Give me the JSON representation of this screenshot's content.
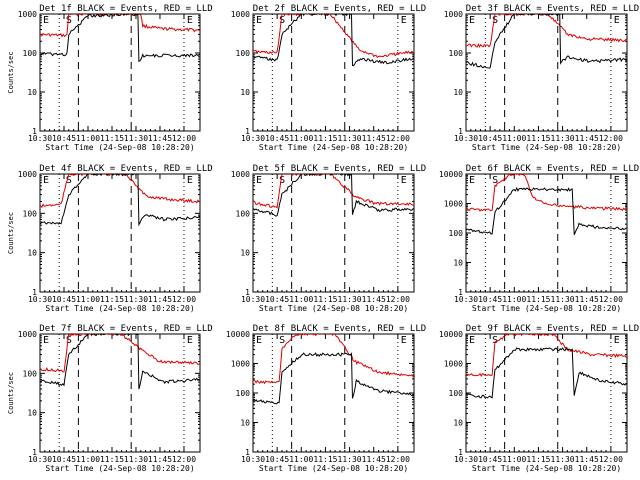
{
  "chart_data": [
    {
      "type": "line",
      "title": "Det 1f BLACK = Events, RED = LLD",
      "xlabel": "Start Time (24-Sep-08 10:28:20)",
      "ylabel": "Counts/sec",
      "ymax_decade": 1000,
      "xticks": [
        "10:30",
        "10:45",
        "11:00",
        "11:15",
        "11:30",
        "11:45",
        "12:00"
      ],
      "yticks": [
        "1",
        "10",
        "100",
        "1000"
      ],
      "markers": [
        "S",
        "E",
        "E"
      ],
      "series": [
        {
          "color": "#e00000",
          "values": [
            [
              10.47,
              300
            ],
            [
              10.78,
              280
            ],
            [
              10.8,
              1000
            ],
            [
              11.55,
              1000
            ],
            [
              11.57,
              500
            ],
            [
              11.75,
              420
            ],
            [
              12.17,
              380
            ]
          ]
        },
        {
          "color": "#000000",
          "values": [
            [
              10.47,
              95
            ],
            [
              10.78,
              92
            ],
            [
              10.8,
              300
            ],
            [
              11.0,
              900
            ],
            [
              11.52,
              1000
            ],
            [
              11.53,
              60
            ],
            [
              11.57,
              85
            ],
            [
              12.17,
              88
            ]
          ]
        }
      ]
    },
    {
      "type": "line",
      "title": "Det 2f BLACK = Events, RED = LLD",
      "xlabel": "Start Time (24-Sep-08 10:28:20)",
      "ylabel": "",
      "ymax_decade": 1000,
      "xticks": [
        "10:30",
        "10:45",
        "11:00",
        "11:15",
        "11:30",
        "11:45",
        "12:00"
      ],
      "yticks": [
        "1",
        "10",
        "100",
        "1000"
      ],
      "markers": [
        "S",
        "E",
        "E"
      ],
      "series": [
        {
          "color": "#e00000",
          "values": [
            [
              10.47,
              110
            ],
            [
              10.75,
              100
            ],
            [
              10.8,
              1000
            ],
            [
              11.3,
              1000
            ],
            [
              11.6,
              120
            ],
            [
              11.8,
              80
            ],
            [
              12.17,
              110
            ]
          ]
        },
        {
          "color": "#000000",
          "values": [
            [
              10.47,
              85
            ],
            [
              10.75,
              65
            ],
            [
              10.8,
              300
            ],
            [
              11.0,
              1000
            ],
            [
              11.52,
              1000
            ],
            [
              11.53,
              45
            ],
            [
              11.6,
              70
            ],
            [
              11.9,
              55
            ],
            [
              12.17,
              75
            ]
          ]
        }
      ]
    },
    {
      "type": "line",
      "title": "Det 3f BLACK = Events, RED = LLD",
      "xlabel": "Start Time (24-Sep-08 10:28:20)",
      "ylabel": "",
      "ymax_decade": 1000,
      "xticks": [
        "10:30",
        "10:45",
        "11:00",
        "11:15",
        "11:30",
        "11:45",
        "12:00"
      ],
      "yticks": [
        "1",
        "10",
        "100",
        "1000"
      ],
      "markers": [
        "S",
        "E",
        "E"
      ],
      "series": [
        {
          "color": "#e00000",
          "values": [
            [
              10.47,
              160
            ],
            [
              10.75,
              150
            ],
            [
              10.8,
              1000
            ],
            [
              11.35,
              1000
            ],
            [
              11.55,
              300
            ],
            [
              11.75,
              230
            ],
            [
              12.17,
              210
            ]
          ]
        },
        {
          "color": "#000000",
          "values": [
            [
              10.47,
              60
            ],
            [
              10.75,
              40
            ],
            [
              10.8,
              200
            ],
            [
              11.0,
              1000
            ],
            [
              11.47,
              1000
            ],
            [
              11.48,
              55
            ],
            [
              11.55,
              80
            ],
            [
              11.8,
              60
            ],
            [
              12.17,
              70
            ]
          ]
        }
      ]
    },
    {
      "type": "line",
      "title": "Det 4f BLACK = Events, RED = LLD",
      "xlabel": "Start Time (24-Sep-08 10:28:20)",
      "ylabel": "Counts/sec",
      "ymax_decade": 1000,
      "xticks": [
        "10:30",
        "10:45",
        "11:00",
        "11:15",
        "11:30",
        "11:45",
        "12:00"
      ],
      "yticks": [
        "1",
        "10",
        "100",
        "1000"
      ],
      "markers": [
        "S",
        "E",
        "E"
      ],
      "series": [
        {
          "color": "#e00000",
          "values": [
            [
              10.47,
              150
            ],
            [
              10.72,
              170
            ],
            [
              10.8,
              1000
            ],
            [
              11.4,
              1000
            ],
            [
              11.5,
              500
            ],
            [
              11.6,
              280
            ],
            [
              11.8,
              230
            ],
            [
              12.17,
              200
            ]
          ]
        },
        {
          "color": "#000000",
          "values": [
            [
              10.47,
              60
            ],
            [
              10.72,
              55
            ],
            [
              10.8,
              300
            ],
            [
              11.0,
              1000
            ],
            [
              11.52,
              1000
            ],
            [
              11.53,
              55
            ],
            [
              11.6,
              90
            ],
            [
              11.8,
              70
            ],
            [
              12.17,
              80
            ]
          ]
        }
      ]
    },
    {
      "type": "line",
      "title": "Det 5f BLACK = Events, RED = LLD",
      "xlabel": "Start Time (24-Sep-08 10:28:20)",
      "ylabel": "",
      "ymax_decade": 1000,
      "xticks": [
        "10:30",
        "10:45",
        "11:00",
        "11:15",
        "11:30",
        "11:45",
        "12:00"
      ],
      "yticks": [
        "1",
        "10",
        "100",
        "1000"
      ],
      "markers": [
        "S",
        "E",
        "E"
      ],
      "series": [
        {
          "color": "#e00000",
          "values": [
            [
              10.47,
              200
            ],
            [
              10.75,
              140
            ],
            [
              10.8,
              1000
            ],
            [
              11.3,
              1000
            ],
            [
              11.55,
              280
            ],
            [
              11.75,
              180
            ],
            [
              12.17,
              170
            ]
          ]
        },
        {
          "color": "#000000",
          "values": [
            [
              10.47,
              140
            ],
            [
              10.75,
              90
            ],
            [
              10.8,
              300
            ],
            [
              11.0,
              1000
            ],
            [
              11.52,
              1000
            ],
            [
              11.53,
              90
            ],
            [
              11.57,
              200
            ],
            [
              11.8,
              120
            ],
            [
              12.17,
              130
            ]
          ]
        }
      ]
    },
    {
      "type": "line",
      "title": "Det 6f BLACK = Events, RED = LLD",
      "xlabel": "Start Time (24-Sep-08 10:28:20)",
      "ylabel": "",
      "ymax_decade": 10000,
      "xticks": [
        "10:30",
        "10:45",
        "11:00",
        "11:15",
        "11:30",
        "11:45",
        "12:00"
      ],
      "yticks": [
        "1",
        "10",
        "100",
        "1000",
        "10000"
      ],
      "markers": [
        "S",
        "E",
        "E"
      ],
      "series": [
        {
          "color": "#e00000",
          "values": [
            [
              10.47,
              650
            ],
            [
              10.77,
              600
            ],
            [
              10.8,
              4000
            ],
            [
              10.95,
              9000
            ],
            [
              11.1,
              10000
            ],
            [
              11.2,
              1500
            ],
            [
              11.35,
              900
            ],
            [
              11.8,
              700
            ],
            [
              12.17,
              650
            ]
          ]
        },
        {
          "color": "#000000",
          "values": [
            [
              10.47,
              130
            ],
            [
              10.77,
              100
            ],
            [
              10.8,
              500
            ],
            [
              11.0,
              3000
            ],
            [
              11.6,
              3000
            ],
            [
              11.62,
              90
            ],
            [
              11.67,
              200
            ],
            [
              11.9,
              150
            ],
            [
              12.17,
              140
            ]
          ]
        }
      ]
    },
    {
      "type": "line",
      "title": "Det 7f BLACK = Events, RED = LLD",
      "xlabel": "Start Time (24-Sep-08 10:28:20)",
      "ylabel": "Counts/sec",
      "ymax_decade": 1000,
      "xticks": [
        "10:30",
        "10:45",
        "11:00",
        "11:15",
        "11:30",
        "11:45",
        "12:00"
      ],
      "yticks": [
        "1",
        "10",
        "100",
        "1000"
      ],
      "markers": [
        "S",
        "E",
        "E"
      ],
      "series": [
        {
          "color": "#e00000",
          "values": [
            [
              10.47,
              130
            ],
            [
              10.75,
              115
            ],
            [
              10.8,
              1000
            ],
            [
              11.35,
              1000
            ],
            [
              11.55,
              400
            ],
            [
              11.75,
              200
            ],
            [
              12.17,
              180
            ]
          ]
        },
        {
          "color": "#000000",
          "values": [
            [
              10.47,
              70
            ],
            [
              10.75,
              50
            ],
            [
              10.8,
              300
            ],
            [
              11.0,
              1000
            ],
            [
              11.52,
              1000
            ],
            [
              11.53,
              40
            ],
            [
              11.57,
              110
            ],
            [
              11.8,
              60
            ],
            [
              12.17,
              70
            ]
          ]
        }
      ]
    },
    {
      "type": "line",
      "title": "Det 8f BLACK = Events, RED = LLD",
      "xlabel": "Start Time (24-Sep-08 10:28:20)",
      "ylabel": "",
      "ymax_decade": 10000,
      "xticks": [
        "10:30",
        "10:45",
        "11:00",
        "11:15",
        "11:30",
        "11:45",
        "12:00"
      ],
      "yticks": [
        "1",
        "10",
        "100",
        "1000",
        "10000"
      ],
      "markers": [
        "S",
        "E",
        "E"
      ],
      "series": [
        {
          "color": "#e00000",
          "values": [
            [
              10.47,
              250
            ],
            [
              10.77,
              220
            ],
            [
              10.8,
              3000
            ],
            [
              10.95,
              10000
            ],
            [
              11.35,
              10000
            ],
            [
              11.55,
              1200
            ],
            [
              11.8,
              500
            ],
            [
              12.17,
              380
            ]
          ]
        },
        {
          "color": "#000000",
          "values": [
            [
              10.47,
              60
            ],
            [
              10.77,
              45
            ],
            [
              10.8,
              500
            ],
            [
              11.0,
              2000
            ],
            [
              11.52,
              2000
            ],
            [
              11.53,
              60
            ],
            [
              11.57,
              250
            ],
            [
              11.8,
              120
            ],
            [
              12.17,
              90
            ]
          ]
        }
      ]
    },
    {
      "type": "line",
      "title": "Det 9f BLACK = Events, RED = LLD",
      "xlabel": "Start Time (24-Sep-08 10:28:20)",
      "ylabel": "",
      "ymax_decade": 10000,
      "xticks": [
        "10:30",
        "10:45",
        "11:00",
        "11:15",
        "11:30",
        "11:45",
        "12:00"
      ],
      "yticks": [
        "1",
        "10",
        "100",
        "1000",
        "10000"
      ],
      "markers": [
        "S",
        "E",
        "E"
      ],
      "series": [
        {
          "color": "#e00000",
          "values": [
            [
              10.47,
              450
            ],
            [
              10.77,
              380
            ],
            [
              10.8,
              5000
            ],
            [
              10.95,
              10000
            ],
            [
              11.4,
              10000
            ],
            [
              11.55,
              3000
            ],
            [
              11.8,
              2000
            ],
            [
              12.17,
              1800
            ]
          ]
        },
        {
          "color": "#000000",
          "values": [
            [
              10.47,
              90
            ],
            [
              10.77,
              70
            ],
            [
              10.8,
              600
            ],
            [
              11.0,
              3000
            ],
            [
              11.6,
              3000
            ],
            [
              11.62,
              80
            ],
            [
              11.67,
              500
            ],
            [
              11.9,
              250
            ],
            [
              12.17,
              200
            ]
          ]
        }
      ]
    }
  ]
}
